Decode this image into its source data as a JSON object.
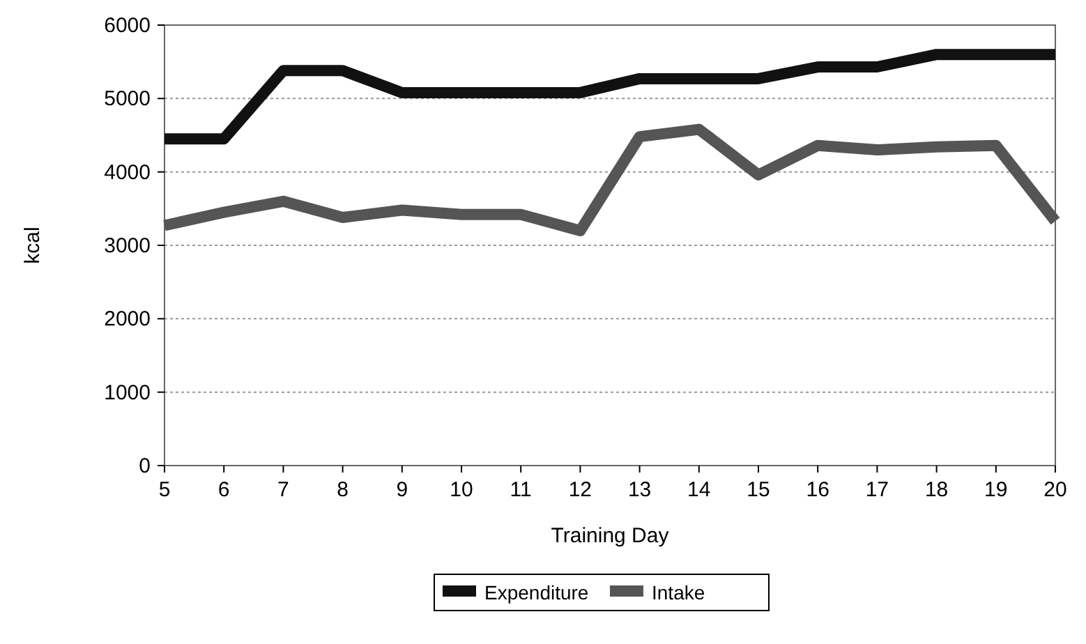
{
  "chart_data": {
    "type": "line",
    "xlabel": "Training Day",
    "ylabel": "kcal",
    "x": [
      5,
      6,
      7,
      8,
      9,
      10,
      11,
      12,
      13,
      14,
      15,
      16,
      17,
      18,
      19,
      20
    ],
    "xlim": [
      5,
      20
    ],
    "xticks": [
      5,
      6,
      7,
      8,
      9,
      10,
      11,
      12,
      13,
      14,
      15,
      16,
      17,
      18,
      19,
      20
    ],
    "ylim": [
      0,
      6000
    ],
    "yticks": [
      0,
      1000,
      2000,
      3000,
      4000,
      5000,
      6000
    ],
    "grid": "y",
    "legend": "bottom",
    "marker": "none",
    "line_style": "solid",
    "series": [
      {
        "name": "Expenditure",
        "color": "#111111",
        "values": [
          4450,
          4450,
          5380,
          5380,
          5080,
          5080,
          5080,
          5080,
          5270,
          5270,
          5270,
          5430,
          5430,
          5600,
          5600,
          5600
        ]
      },
      {
        "name": "Intake",
        "color": "#555555",
        "values": [
          3270,
          3450,
          3600,
          3380,
          3480,
          3420,
          3420,
          3200,
          4480,
          4580,
          3960,
          4360,
          4300,
          4340,
          4360,
          3330
        ]
      }
    ]
  }
}
